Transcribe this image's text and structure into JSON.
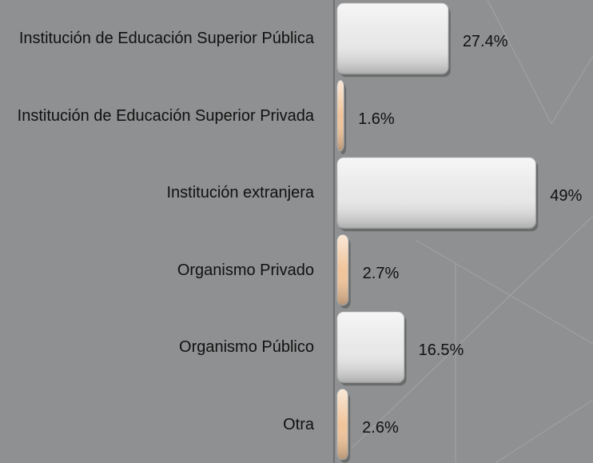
{
  "chart_data": {
    "type": "hbar",
    "categories": [
      "Institución de Educación Superior Pública",
      "Institución de Educación Superior Privada",
      "Institución extranjera",
      "Organismo Privado",
      "Organismo Público",
      "Otra"
    ],
    "values": [
      27.4,
      1.6,
      49,
      2.7,
      16.5,
      2.6
    ],
    "value_labels": [
      "27.4%",
      "1.6%",
      "49%",
      "2.7%",
      "16.5%",
      "2.6%"
    ],
    "colors": [
      "#e8e8e8",
      "#f0c49a",
      "#e8e8e8",
      "#f0c49a",
      "#e8e8e8",
      "#f0c49a"
    ],
    "xlim": [
      0,
      60
    ]
  }
}
